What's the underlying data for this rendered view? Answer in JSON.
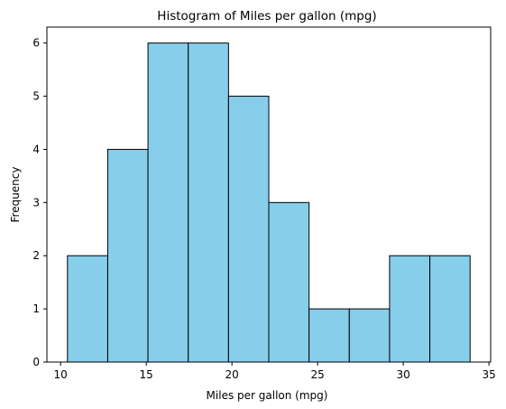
{
  "chart_data": {
    "type": "bar",
    "title": "Histogram of Miles per gallon (mpg)",
    "xlabel": "Miles per gallon (mpg)",
    "ylabel": "Frequency",
    "bins": [
      {
        "start": 10.4,
        "end": 12.75,
        "count": 2
      },
      {
        "start": 12.75,
        "end": 15.1,
        "count": 4
      },
      {
        "start": 15.1,
        "end": 17.45,
        "count": 6
      },
      {
        "start": 17.45,
        "end": 19.8,
        "count": 6
      },
      {
        "start": 19.8,
        "end": 22.15,
        "count": 5
      },
      {
        "start": 22.15,
        "end": 24.5,
        "count": 3
      },
      {
        "start": 24.5,
        "end": 26.85,
        "count": 1
      },
      {
        "start": 26.85,
        "end": 29.2,
        "count": 1
      },
      {
        "start": 29.2,
        "end": 31.55,
        "count": 2
      },
      {
        "start": 31.55,
        "end": 33.9,
        "count": 2
      }
    ],
    "xlim": [
      9.2,
      35.1
    ],
    "ylim": [
      0,
      6.3
    ],
    "xticks": [
      10,
      15,
      20,
      25,
      30,
      35
    ],
    "yticks": [
      0,
      1,
      2,
      3,
      4,
      5,
      6
    ],
    "bar_color": "#87ceeb",
    "edge_color": "#000000",
    "grid": false,
    "legend": "none"
  }
}
